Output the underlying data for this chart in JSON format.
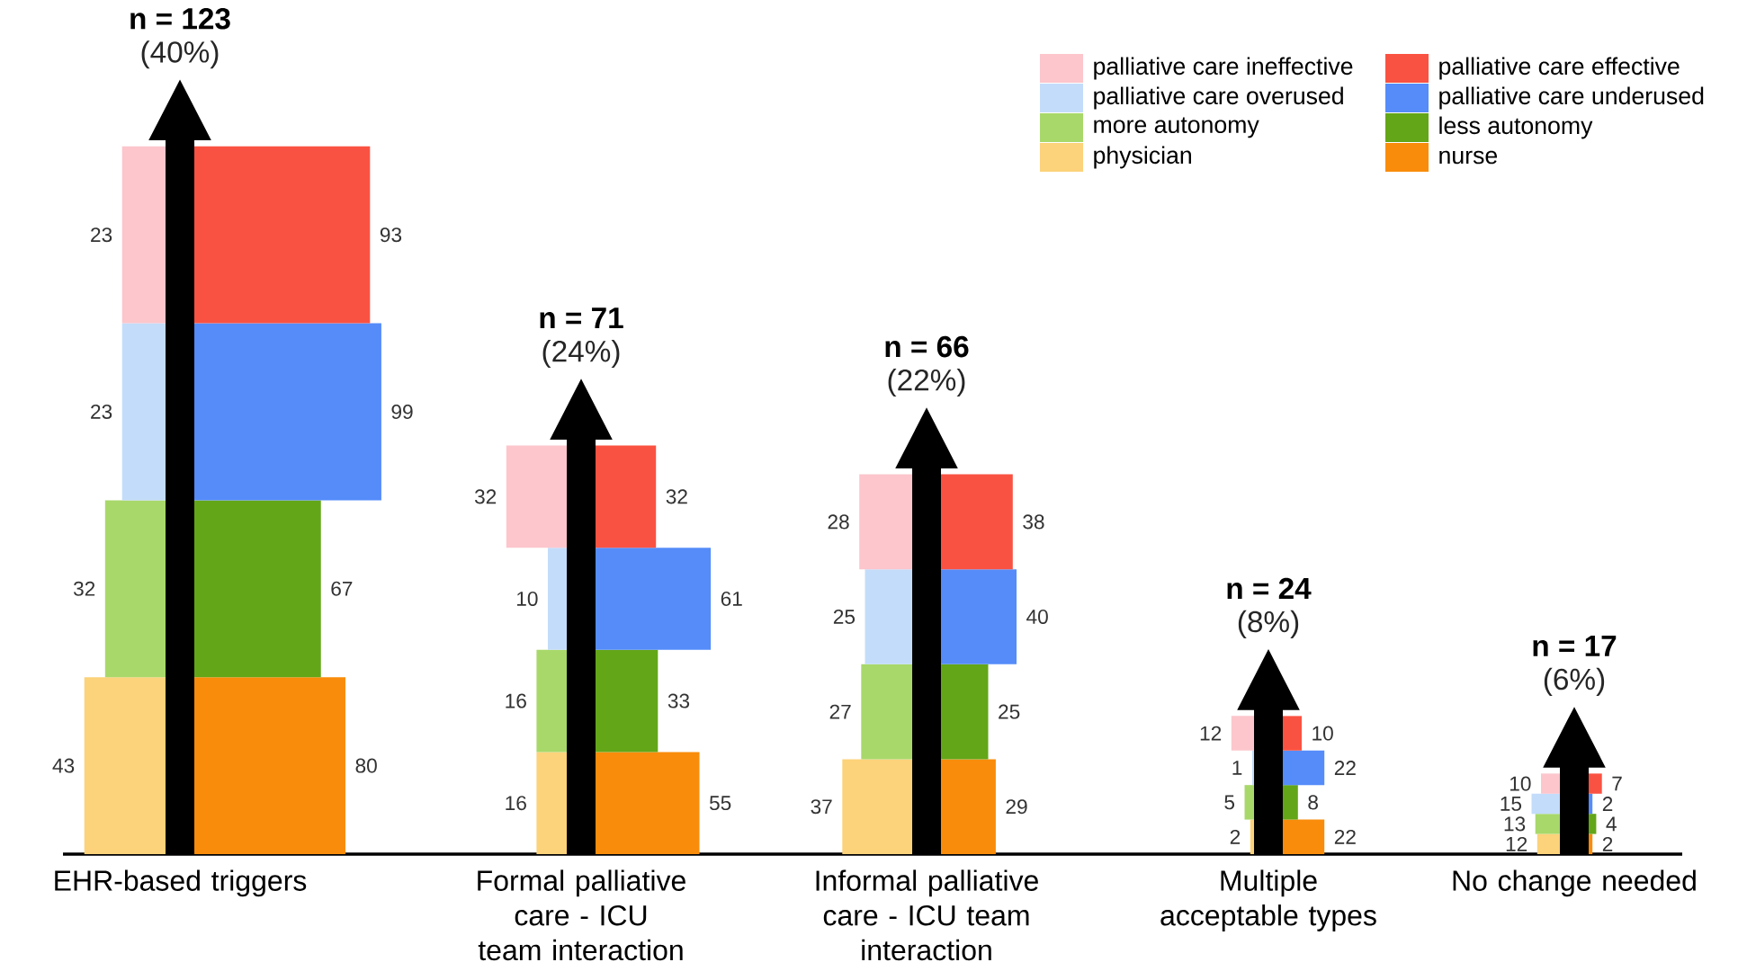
{
  "chart_data": {
    "type": "other",
    "legend": "top right",
    "categories": [
      "EHR-based triggers",
      "Formal palliative care - ICU team interaction",
      "Informal palliative care - ICU team interaction",
      "Multiple acceptable types",
      "No change needed"
    ],
    "series": [
      {
        "name": "physician",
        "color": "#fcd27a",
        "values": [
          43,
          16,
          37,
          2,
          12
        ],
        "value_labels": [
          "43",
          "16",
          "37",
          "2",
          "12"
        ]
      },
      {
        "name": "nurse",
        "color": "#f98c0a",
        "values": [
          80,
          55,
          29,
          22,
          2
        ],
        "value_labels": [
          "80",
          "55",
          "29",
          "22",
          "2"
        ]
      },
      {
        "name": "more autonomy",
        "color": "#a8d86a",
        "values": [
          32,
          16,
          27,
          5,
          13
        ],
        "value_labels": [
          "32",
          "16",
          "27",
          "5",
          "13"
        ]
      },
      {
        "name": "less autonomy",
        "color": "#63a618",
        "values": [
          67,
          33,
          25,
          8,
          4
        ],
        "value_labels": [
          "67",
          "33",
          "25",
          "8",
          "4"
        ]
      },
      {
        "name": "palliative care overused",
        "color": "#c3dcfa",
        "values": [
          23,
          10,
          25,
          1,
          15
        ],
        "value_labels": [
          "23",
          "10",
          "25",
          "1",
          "15"
        ]
      },
      {
        "name": "palliative care underused",
        "color": "#558cfa",
        "values": [
          99,
          61,
          40,
          22,
          2
        ],
        "value_labels": [
          "99",
          "61",
          "40",
          "22",
          "2"
        ]
      },
      {
        "name": "palliative care ineffective",
        "color": "#fcc6cc",
        "values": [
          23,
          32,
          28,
          12,
          10
        ],
        "value_labels": [
          "23",
          "32",
          "28",
          "12",
          "10"
        ]
      },
      {
        "name": "palliative care effective",
        "color": "#fa5242",
        "values": [
          93,
          32,
          38,
          10,
          7
        ],
        "value_labels": [
          "93",
          "32",
          "38",
          "10",
          "7"
        ]
      }
    ],
    "annotations": [
      "n = 123",
      "(40%)",
      "n = 71",
      "(24%)",
      "n = 66",
      "(22%)",
      "n = 24",
      "(8%)",
      "n = 17",
      "(6%)"
    ]
  }
}
